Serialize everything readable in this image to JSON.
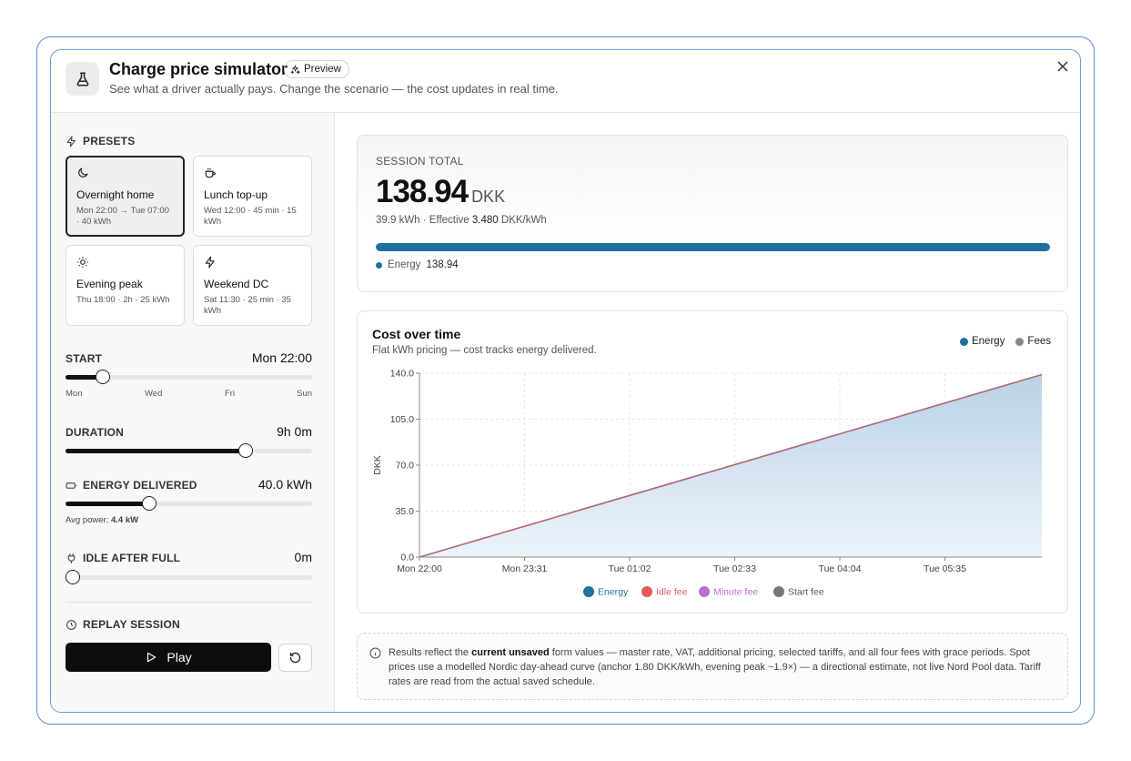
{
  "header": {
    "title": "Charge price simulator",
    "badge": "Preview",
    "subtitle": "See what a driver actually pays. Change the scenario — the cost updates in real time."
  },
  "presets": {
    "label": "PRESETS",
    "items": [
      {
        "name": "Overnight home",
        "meta": "Mon 22:00 → Tue 07:00 · 40 kWh",
        "icon": "moon-icon",
        "active": true
      },
      {
        "name": "Lunch top-up",
        "meta": "Wed 12:00 · 45 min · 15 kWh",
        "icon": "coffee-icon",
        "active": false
      },
      {
        "name": "Evening peak",
        "meta": "Thu 18:00 · 2h · 25 kWh",
        "icon": "sun-icon",
        "active": false
      },
      {
        "name": "Weekend DC",
        "meta": "Sat 11:30 · 25 min · 35 kWh",
        "icon": "lightning-icon",
        "active": false
      }
    ]
  },
  "controls": {
    "start": {
      "label": "START",
      "value": "Mon 22:00",
      "fraction": 0.15,
      "ticks": [
        "Mon",
        "Wed",
        "Fri",
        "Sun"
      ]
    },
    "duration": {
      "label": "DURATION",
      "value": "9h 0m",
      "fraction": 0.73
    },
    "energy": {
      "label": "ENERGY DELIVERED",
      "value": "40.0 kWh",
      "fraction": 0.34,
      "avg_label": "Avg power:",
      "avg_value": "4.4 kW"
    },
    "idle": {
      "label": "IDLE AFTER FULL",
      "value": "0m",
      "fraction": 0.03
    }
  },
  "replay": {
    "label": "REPLAY SESSION",
    "play_label": "Play"
  },
  "total": {
    "label": "SESSION TOTAL",
    "amount": "138.94",
    "currency": "DKK",
    "sub_prefix": "39.9 kWh · Effective",
    "rate": "3.480",
    "rate_unit": "DKK/kWh",
    "bar_fraction": 1.0,
    "legend_label": "Energy",
    "legend_value": "138.94"
  },
  "chart": {
    "title": "Cost over time",
    "subtitle": "Flat kWh pricing — cost tracks energy delivered.",
    "top_legend": [
      {
        "name": "Energy",
        "color": "#1f6fa1"
      },
      {
        "name": "Fees",
        "color": "#888888"
      }
    ]
  },
  "chart_data": {
    "type": "area",
    "ylabel": "DKK",
    "xlabel": "",
    "ylim": [
      0,
      140
    ],
    "yticks": [
      0.0,
      35.0,
      70.0,
      105.0,
      140.0
    ],
    "x_tick_labels": [
      "Mon 22:00",
      "Mon 23:31",
      "Tue 01:02",
      "Tue 02:33",
      "Tue 04:04",
      "Tue 05:35"
    ],
    "x": [
      "Mon 22:00",
      "Tue 07:00"
    ],
    "series": [
      {
        "name": "Energy",
        "values": [
          0,
          138.94
        ],
        "color": "#1f6fa1"
      },
      {
        "name": "Idle fee",
        "values": [
          0,
          0
        ],
        "color": "#e05a5a"
      },
      {
        "name": "Minute fee",
        "values": [
          0,
          0
        ],
        "color": "#b86fd4"
      },
      {
        "name": "Start fee",
        "values": [
          0,
          0
        ],
        "color": "#777777"
      }
    ],
    "grid": true,
    "legend_position": "bottom"
  },
  "note": {
    "part1": "Results reflect the",
    "bold": "current unsaved",
    "part2": "form values — master rate, VAT, additional pricing, selected tariffs, and all four fees with grace periods. Spot prices use a modelled Nordic day-ahead curve (anchor 1.80 DKK/kWh, evening peak ~1.9×) — a directional estimate, not live Nord Pool data. Tariff rates are read from the actual saved schedule."
  }
}
